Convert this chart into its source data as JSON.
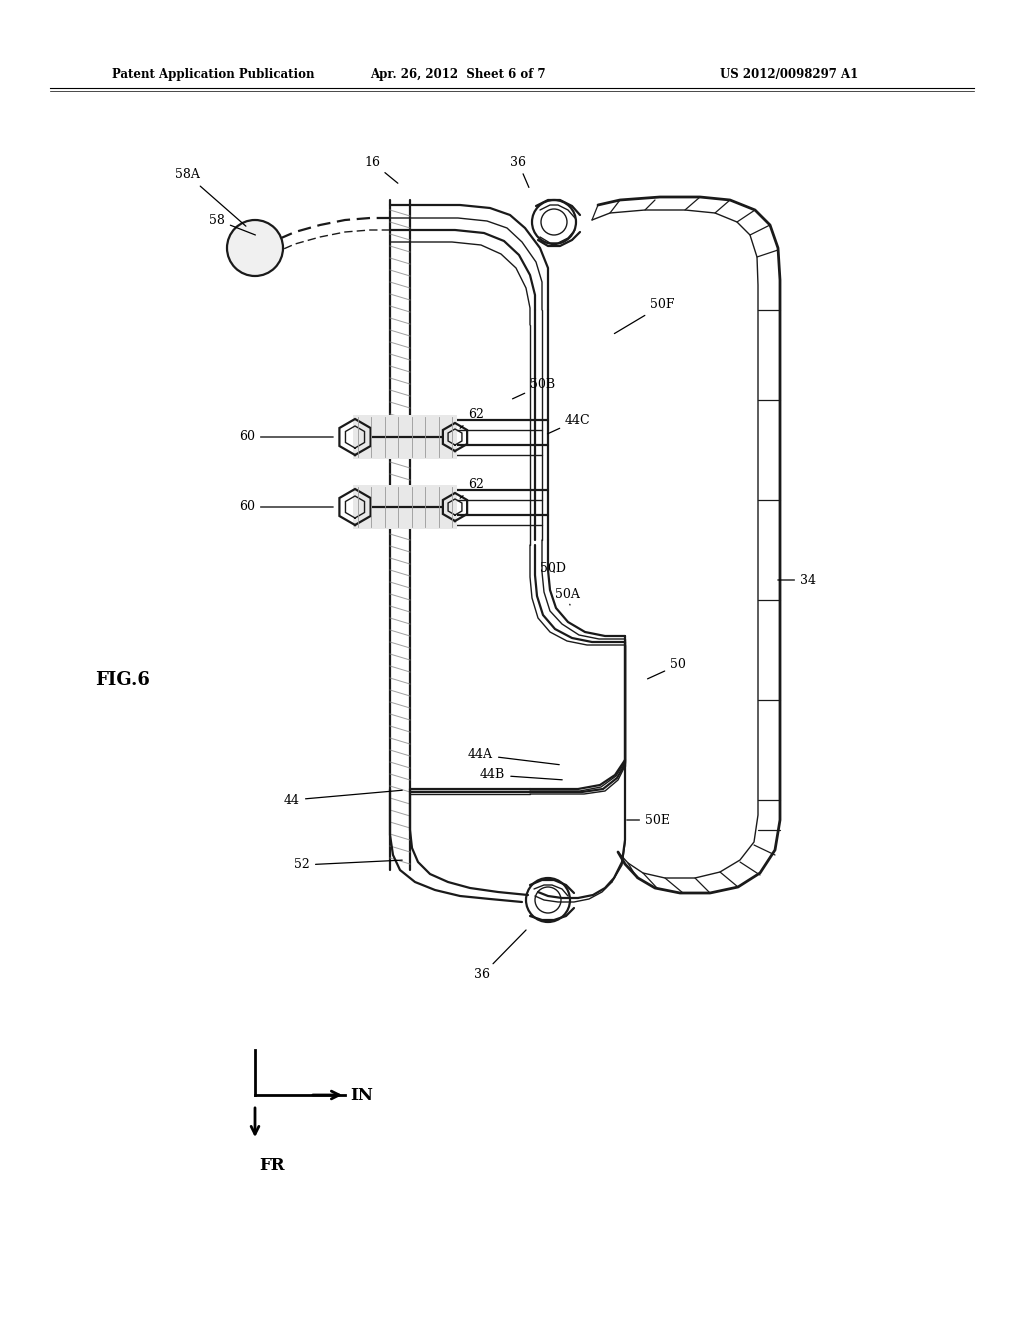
{
  "bg_color": "#ffffff",
  "lc": "#1a1a1a",
  "title_left": "Patent Application Publication",
  "title_mid": "Apr. 26, 2012  Sheet 6 of 7",
  "title_right": "US 2012/0098297 A1",
  "fig_label": "FIG.6",
  "lw_main": 1.6,
  "lw_thin": 1.0,
  "lw_outer": 2.0,
  "lw_tick": 1.0
}
